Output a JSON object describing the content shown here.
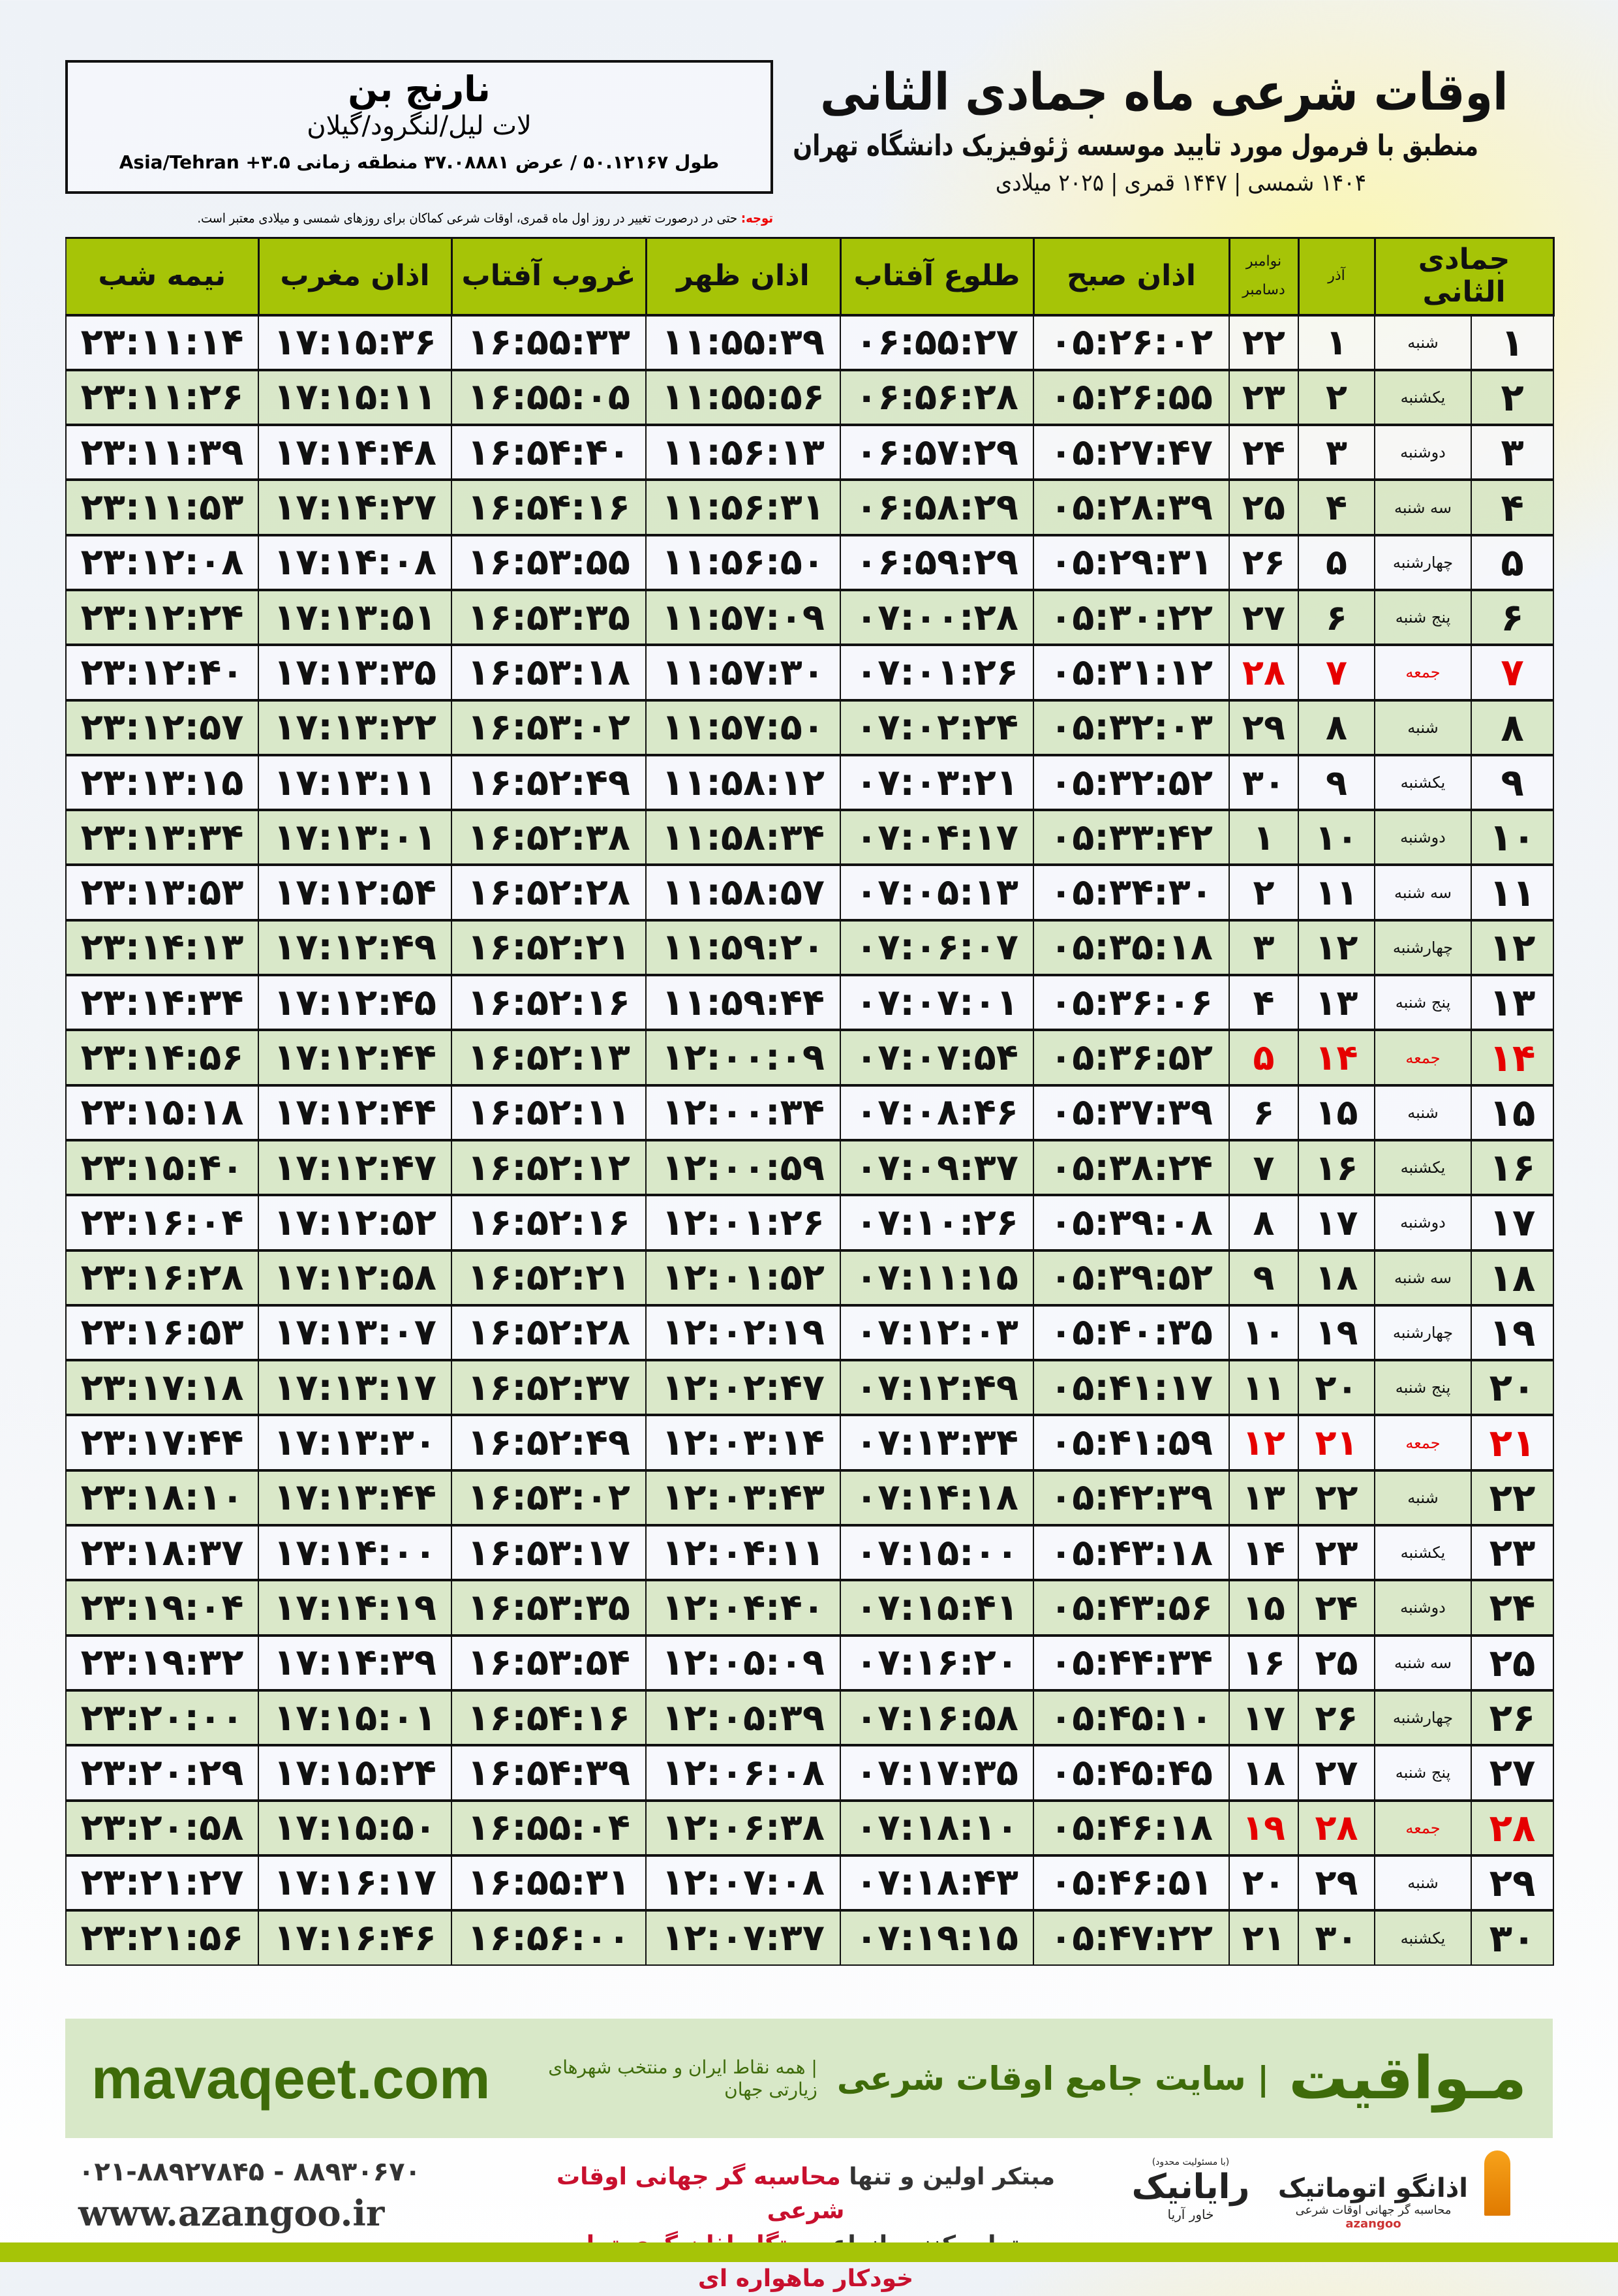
{
  "header": {
    "title": "اوقات شرعی ماه جمادی الثانی",
    "subtitle": "منطبق با فرمول مورد تایید موسسه ژئوفیزیک دانشگاه تهران",
    "years": "۱۴۰۴ شمسی | ۱۴۴۷ قمری | ۲۰۲۵ میلادی"
  },
  "location": {
    "city": "نارنج بن",
    "region": "لات لیل/لنگرود/گیلان",
    "coords": "طول ۵۰.۱۲۱۶۷ / عرض ۳۷.۰۸۸۸۱ منطقه زمانی ۳.۵+ Asia/Tehran"
  },
  "note": {
    "label": "توجه:",
    "text": " حتی در درصورت تغییر در روز اول ماه قمری، اوقات شرعی کماکان برای روزهای شمسی و میلادی معتبر است."
  },
  "colors": {
    "header_green": "#a6c407",
    "row_green": "#d7e6c4",
    "friday_red": "#e60000",
    "brand_green": "#3e6b0a"
  },
  "table": {
    "columns": {
      "hijri": "جمادی الثانی",
      "azar": "آذر",
      "gregorian_top": "نوامبر",
      "gregorian_bottom": "دسامبر",
      "fajr": "اذان صبح",
      "sunrise": "طلوع آفتاب",
      "dhuhr": "اذان ظهر",
      "sunset": "غروب آفتاب",
      "maghrib": "اذان مغرب",
      "midnight": "نیمه شب"
    },
    "rows": [
      [
        "۱",
        "شنبه",
        "۱",
        "۲۲",
        "۰۵:۲۶:۰۲",
        "۰۶:۵۵:۲۷",
        "۱۱:۵۵:۳۹",
        "۱۶:۵۵:۳۳",
        "۱۷:۱۵:۳۶",
        "۲۳:۱۱:۱۴"
      ],
      [
        "۲",
        "یکشنبه",
        "۲",
        "۲۳",
        "۰۵:۲۶:۵۵",
        "۰۶:۵۶:۲۸",
        "۱۱:۵۵:۵۶",
        "۱۶:۵۵:۰۵",
        "۱۷:۱۵:۱۱",
        "۲۳:۱۱:۲۶"
      ],
      [
        "۳",
        "دوشنبه",
        "۳",
        "۲۴",
        "۰۵:۲۷:۴۷",
        "۰۶:۵۷:۲۹",
        "۱۱:۵۶:۱۳",
        "۱۶:۵۴:۴۰",
        "۱۷:۱۴:۴۸",
        "۲۳:۱۱:۳۹"
      ],
      [
        "۴",
        "سه شنبه",
        "۴",
        "۲۵",
        "۰۵:۲۸:۳۹",
        "۰۶:۵۸:۲۹",
        "۱۱:۵۶:۳۱",
        "۱۶:۵۴:۱۶",
        "۱۷:۱۴:۲۷",
        "۲۳:۱۱:۵۳"
      ],
      [
        "۵",
        "چهارشنبه",
        "۵",
        "۲۶",
        "۰۵:۲۹:۳۱",
        "۰۶:۵۹:۲۹",
        "۱۱:۵۶:۵۰",
        "۱۶:۵۳:۵۵",
        "۱۷:۱۴:۰۸",
        "۲۳:۱۲:۰۸"
      ],
      [
        "۶",
        "پنج شنبه",
        "۶",
        "۲۷",
        "۰۵:۳۰:۲۲",
        "۰۷:۰۰:۲۸",
        "۱۱:۵۷:۰۹",
        "۱۶:۵۳:۳۵",
        "۱۷:۱۳:۵۱",
        "۲۳:۱۲:۲۴"
      ],
      [
        "۷",
        "جمعه",
        "۷",
        "۲۸",
        "۰۵:۳۱:۱۲",
        "۰۷:۰۱:۲۶",
        "۱۱:۵۷:۳۰",
        "۱۶:۵۳:۱۸",
        "۱۷:۱۳:۳۵",
        "۲۳:۱۲:۴۰"
      ],
      [
        "۸",
        "شنبه",
        "۸",
        "۲۹",
        "۰۵:۳۲:۰۳",
        "۰۷:۰۲:۲۴",
        "۱۱:۵۷:۵۰",
        "۱۶:۵۳:۰۲",
        "۱۷:۱۳:۲۲",
        "۲۳:۱۲:۵۷"
      ],
      [
        "۹",
        "یکشنبه",
        "۹",
        "۳۰",
        "۰۵:۳۲:۵۲",
        "۰۷:۰۳:۲۱",
        "۱۱:۵۸:۱۲",
        "۱۶:۵۲:۴۹",
        "۱۷:۱۳:۱۱",
        "۲۳:۱۳:۱۵"
      ],
      [
        "۱۰",
        "دوشنبه",
        "۱۰",
        "۱",
        "۰۵:۳۳:۴۲",
        "۰۷:۰۴:۱۷",
        "۱۱:۵۸:۳۴",
        "۱۶:۵۲:۳۸",
        "۱۷:۱۳:۰۱",
        "۲۳:۱۳:۳۴"
      ],
      [
        "۱۱",
        "سه شنبه",
        "۱۱",
        "۲",
        "۰۵:۳۴:۳۰",
        "۰۷:۰۵:۱۳",
        "۱۱:۵۸:۵۷",
        "۱۶:۵۲:۲۸",
        "۱۷:۱۲:۵۴",
        "۲۳:۱۳:۵۳"
      ],
      [
        "۱۲",
        "چهارشنبه",
        "۱۲",
        "۳",
        "۰۵:۳۵:۱۸",
        "۰۷:۰۶:۰۷",
        "۱۱:۵۹:۲۰",
        "۱۶:۵۲:۲۱",
        "۱۷:۱۲:۴۹",
        "۲۳:۱۴:۱۳"
      ],
      [
        "۱۳",
        "پنج شنبه",
        "۱۳",
        "۴",
        "۰۵:۳۶:۰۶",
        "۰۷:۰۷:۰۱",
        "۱۱:۵۹:۴۴",
        "۱۶:۵۲:۱۶",
        "۱۷:۱۲:۴۵",
        "۲۳:۱۴:۳۴"
      ],
      [
        "۱۴",
        "جمعه",
        "۱۴",
        "۵",
        "۰۵:۳۶:۵۲",
        "۰۷:۰۷:۵۴",
        "۱۲:۰۰:۰۹",
        "۱۶:۵۲:۱۳",
        "۱۷:۱۲:۴۴",
        "۲۳:۱۴:۵۶"
      ],
      [
        "۱۵",
        "شنبه",
        "۱۵",
        "۶",
        "۰۵:۳۷:۳۹",
        "۰۷:۰۸:۴۶",
        "۱۲:۰۰:۳۴",
        "۱۶:۵۲:۱۱",
        "۱۷:۱۲:۴۴",
        "۲۳:۱۵:۱۸"
      ],
      [
        "۱۶",
        "یکشنبه",
        "۱۶",
        "۷",
        "۰۵:۳۸:۲۴",
        "۰۷:۰۹:۳۷",
        "۱۲:۰۰:۵۹",
        "۱۶:۵۲:۱۲",
        "۱۷:۱۲:۴۷",
        "۲۳:۱۵:۴۰"
      ],
      [
        "۱۷",
        "دوشنبه",
        "۱۷",
        "۸",
        "۰۵:۳۹:۰۸",
        "۰۷:۱۰:۲۶",
        "۱۲:۰۱:۲۶",
        "۱۶:۵۲:۱۶",
        "۱۷:۱۲:۵۲",
        "۲۳:۱۶:۰۴"
      ],
      [
        "۱۸",
        "سه شنبه",
        "۱۸",
        "۹",
        "۰۵:۳۹:۵۲",
        "۰۷:۱۱:۱۵",
        "۱۲:۰۱:۵۲",
        "۱۶:۵۲:۲۱",
        "۱۷:۱۲:۵۸",
        "۲۳:۱۶:۲۸"
      ],
      [
        "۱۹",
        "چهارشنبه",
        "۱۹",
        "۱۰",
        "۰۵:۴۰:۳۵",
        "۰۷:۱۲:۰۳",
        "۱۲:۰۲:۱۹",
        "۱۶:۵۲:۲۸",
        "۱۷:۱۳:۰۷",
        "۲۳:۱۶:۵۳"
      ],
      [
        "۲۰",
        "پنج شنبه",
        "۲۰",
        "۱۱",
        "۰۵:۴۱:۱۷",
        "۰۷:۱۲:۴۹",
        "۱۲:۰۲:۴۷",
        "۱۶:۵۲:۳۷",
        "۱۷:۱۳:۱۷",
        "۲۳:۱۷:۱۸"
      ],
      [
        "۲۱",
        "جمعه",
        "۲۱",
        "۱۲",
        "۰۵:۴۱:۵۹",
        "۰۷:۱۳:۳۴",
        "۱۲:۰۳:۱۴",
        "۱۶:۵۲:۴۹",
        "۱۷:۱۳:۳۰",
        "۲۳:۱۷:۴۴"
      ],
      [
        "۲۲",
        "شنبه",
        "۲۲",
        "۱۳",
        "۰۵:۴۲:۳۹",
        "۰۷:۱۴:۱۸",
        "۱۲:۰۳:۴۳",
        "۱۶:۵۳:۰۲",
        "۱۷:۱۳:۴۴",
        "۲۳:۱۸:۱۰"
      ],
      [
        "۲۳",
        "یکشنبه",
        "۲۳",
        "۱۴",
        "۰۵:۴۳:۱۸",
        "۰۷:۱۵:۰۰",
        "۱۲:۰۴:۱۱",
        "۱۶:۵۳:۱۷",
        "۱۷:۱۴:۰۰",
        "۲۳:۱۸:۳۷"
      ],
      [
        "۲۴",
        "دوشنبه",
        "۲۴",
        "۱۵",
        "۰۵:۴۳:۵۶",
        "۰۷:۱۵:۴۱",
        "۱۲:۰۴:۴۰",
        "۱۶:۵۳:۳۵",
        "۱۷:۱۴:۱۹",
        "۲۳:۱۹:۰۴"
      ],
      [
        "۲۵",
        "سه شنبه",
        "۲۵",
        "۱۶",
        "۰۵:۴۴:۳۴",
        "۰۷:۱۶:۲۰",
        "۱۲:۰۵:۰۹",
        "۱۶:۵۳:۵۴",
        "۱۷:۱۴:۳۹",
        "۲۳:۱۹:۳۲"
      ],
      [
        "۲۶",
        "چهارشنبه",
        "۲۶",
        "۱۷",
        "۰۵:۴۵:۱۰",
        "۰۷:۱۶:۵۸",
        "۱۲:۰۵:۳۹",
        "۱۶:۵۴:۱۶",
        "۱۷:۱۵:۰۱",
        "۲۳:۲۰:۰۰"
      ],
      [
        "۲۷",
        "پنج شنبه",
        "۲۷",
        "۱۸",
        "۰۵:۴۵:۴۵",
        "۰۷:۱۷:۳۵",
        "۱۲:۰۶:۰۸",
        "۱۶:۵۴:۳۹",
        "۱۷:۱۵:۲۴",
        "۲۳:۲۰:۲۹"
      ],
      [
        "۲۸",
        "جمعه",
        "۲۸",
        "۱۹",
        "۰۵:۴۶:۱۸",
        "۰۷:۱۸:۱۰",
        "۱۲:۰۶:۳۸",
        "۱۶:۵۵:۰۴",
        "۱۷:۱۵:۵۰",
        "۲۳:۲۰:۵۸"
      ],
      [
        "۲۹",
        "شنبه",
        "۲۹",
        "۲۰",
        "۰۵:۴۶:۵۱",
        "۰۷:۱۸:۴۳",
        "۱۲:۰۷:۰۸",
        "۱۶:۵۵:۳۱",
        "۱۷:۱۶:۱۷",
        "۲۳:۲۱:۲۷"
      ],
      [
        "۳۰",
        "یکشنبه",
        "۳۰",
        "۲۱",
        "۰۵:۴۷:۲۲",
        "۰۷:۱۹:۱۵",
        "۱۲:۰۷:۳۷",
        "۱۶:۵۶:۰۰",
        "۱۷:۱۶:۴۶",
        "۲۳:۲۱:۵۶"
      ]
    ]
  },
  "banner": {
    "logo": "مـواقیت",
    "tagline": "| سایت جامع اوقات شرعی",
    "tagline2": "| همه نقاط ایران و منتخب شهرهای زیارتی جهان",
    "url": "mavaqeet.com"
  },
  "footer": {
    "phone": "۰۲۱-۸۸۹۲۷۸۴۵ - ۸۸۹۳۰۶۷۰",
    "website": "www.azangoo.ir",
    "promo1_a": "مبتکر اولین و تنها ",
    "promo1_b": "محاسبه گر جهانی اوقات شرعی",
    "promo2_a": "و تولید کننده انواع ",
    "promo2_b": "دستگاه اذان گوی تمام خودکار ماهواره ای",
    "raya_small": "(با مسئولیت محدود)",
    "raya_name": "رایانیک",
    "raya_sub": "خاور آریا",
    "azan_name": "اذانگو اتوماتیک",
    "azan_sub": "محاسبه گر جهانی اوقات شرعی",
    "azan_en": "azangoo"
  }
}
